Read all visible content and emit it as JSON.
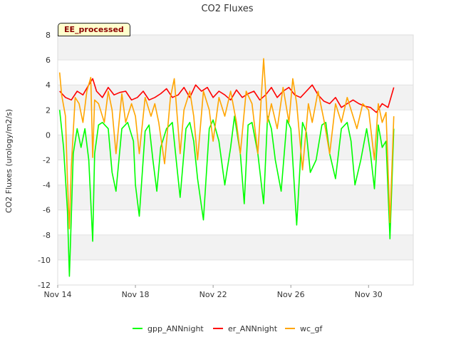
{
  "chart_data": {
    "type": "line",
    "title": "CO2 Fluxes",
    "xlabel": "",
    "ylabel": "CO2 Fluxes (urology/m2/s)",
    "badge": "EE_processed",
    "ylim": [
      -12,
      8
    ],
    "yticks": [
      8,
      6,
      4,
      2,
      0,
      -2,
      -4,
      -6,
      -8,
      -10,
      -12
    ],
    "xlim_days": [
      14,
      32.3
    ],
    "xticks": [
      {
        "label": "Nov 14",
        "day": 14
      },
      {
        "label": "Nov 18",
        "day": 18
      },
      {
        "label": "Nov 22",
        "day": 22
      },
      {
        "label": "Nov 26",
        "day": 26
      },
      {
        "label": "Nov 30",
        "day": 30
      }
    ],
    "grid": true,
    "legend_position": "bottom",
    "series": [
      {
        "name": "gpp_ANNnight",
        "color": "#00ff00",
        "x": [
          14.1,
          14.3,
          14.5,
          14.6,
          14.7,
          14.8,
          15.0,
          15.2,
          15.4,
          15.6,
          15.8,
          15.9,
          16.1,
          16.3,
          16.6,
          16.8,
          17.0,
          17.3,
          17.6,
          17.9,
          18.0,
          18.2,
          18.5,
          18.7,
          18.9,
          19.1,
          19.3,
          19.6,
          19.9,
          20.1,
          20.3,
          20.6,
          20.8,
          21.0,
          21.2,
          21.5,
          21.8,
          22.0,
          22.3,
          22.6,
          22.9,
          23.1,
          23.4,
          23.6,
          23.8,
          24.0,
          24.3,
          24.6,
          24.8,
          25.0,
          25.2,
          25.5,
          25.8,
          26.0,
          26.3,
          26.6,
          26.8,
          27.0,
          27.3,
          27.6,
          27.8,
          28.0,
          28.3,
          28.6,
          28.9,
          29.1,
          29.3,
          29.6,
          29.9,
          30.1,
          30.3,
          30.5,
          30.7,
          30.9,
          31.1,
          31.3
        ],
        "y": [
          2.0,
          -1.0,
          -6.0,
          -11.3,
          -6.5,
          -1.5,
          0.5,
          -1.0,
          0.5,
          -2.0,
          -8.5,
          -1.5,
          0.8,
          1.0,
          0.5,
          -3.0,
          -4.5,
          0.5,
          1.0,
          -0.5,
          -4.0,
          -6.5,
          0.3,
          0.8,
          -2.0,
          -4.5,
          -1.0,
          0.5,
          1.0,
          -2.0,
          -5.0,
          0.5,
          1.0,
          -0.5,
          -3.5,
          -6.8,
          0.5,
          1.2,
          -0.5,
          -4.0,
          -1.0,
          1.5,
          -1.5,
          -5.5,
          0.8,
          1.0,
          -1.5,
          -5.5,
          1.5,
          0.5,
          -2.0,
          -4.5,
          1.2,
          0.5,
          -7.2,
          1.0,
          0.2,
          -3.0,
          -2.0,
          0.8,
          1.0,
          -1.5,
          -3.5,
          0.5,
          1.0,
          -0.5,
          -4.0,
          -2.0,
          0.5,
          -1.5,
          -4.3,
          0.8,
          -1.0,
          -0.5,
          -8.3,
          0.5
        ]
      },
      {
        "name": "er_ANNnight",
        "color": "#ff0000",
        "x": [
          14.1,
          14.4,
          14.7,
          15.0,
          15.3,
          15.6,
          15.8,
          16.0,
          16.3,
          16.6,
          16.9,
          17.2,
          17.5,
          17.8,
          18.1,
          18.4,
          18.7,
          19.0,
          19.3,
          19.6,
          19.9,
          20.2,
          20.5,
          20.8,
          21.1,
          21.4,
          21.7,
          22.0,
          22.3,
          22.6,
          22.9,
          23.2,
          23.5,
          23.8,
          24.1,
          24.4,
          24.7,
          25.0,
          25.3,
          25.6,
          25.9,
          26.2,
          26.5,
          26.8,
          27.1,
          27.4,
          27.7,
          28.0,
          28.3,
          28.6,
          28.9,
          29.2,
          29.5,
          29.8,
          30.1,
          30.4,
          30.7,
          31.0,
          31.3
        ],
        "y": [
          3.5,
          3.0,
          2.8,
          3.5,
          3.2,
          4.0,
          4.5,
          3.5,
          3.0,
          3.8,
          3.2,
          3.4,
          3.5,
          2.8,
          3.0,
          3.5,
          2.8,
          3.0,
          3.3,
          3.7,
          3.0,
          3.2,
          3.8,
          3.0,
          4.0,
          3.5,
          3.8,
          3.0,
          3.5,
          3.2,
          2.8,
          3.6,
          3.0,
          3.3,
          3.5,
          2.8,
          3.2,
          3.8,
          3.0,
          3.5,
          3.8,
          3.2,
          3.0,
          3.5,
          4.0,
          3.2,
          2.7,
          2.5,
          3.0,
          2.2,
          2.5,
          2.8,
          2.5,
          2.3,
          2.2,
          1.8,
          2.5,
          2.2,
          3.8
        ]
      },
      {
        "name": "wc_gf",
        "color": "#ffa500",
        "x": [
          14.1,
          14.2,
          14.4,
          14.5,
          14.6,
          14.7,
          14.9,
          15.1,
          15.3,
          15.5,
          15.7,
          15.8,
          15.9,
          16.1,
          16.4,
          16.6,
          16.8,
          17.0,
          17.3,
          17.5,
          17.8,
          18.0,
          18.2,
          18.5,
          18.8,
          19.0,
          19.2,
          19.5,
          19.8,
          20.0,
          20.3,
          20.5,
          20.8,
          21.0,
          21.2,
          21.5,
          21.8,
          22.0,
          22.3,
          22.6,
          22.9,
          23.2,
          23.4,
          23.7,
          24.0,
          24.3,
          24.6,
          24.8,
          25.0,
          25.3,
          25.6,
          25.9,
          26.1,
          26.3,
          26.6,
          26.9,
          27.1,
          27.4,
          27.7,
          28.0,
          28.3,
          28.6,
          28.9,
          29.2,
          29.4,
          29.7,
          30.0,
          30.3,
          30.5,
          30.7,
          30.9,
          31.1,
          31.3
        ],
        "y": [
          5.0,
          3.2,
          1.5,
          -3.5,
          -7.5,
          -2.5,
          3.0,
          2.5,
          1.0,
          3.5,
          4.6,
          -1.8,
          2.8,
          2.5,
          1.0,
          3.5,
          2.0,
          -1.5,
          3.3,
          1.0,
          2.5,
          1.5,
          -1.5,
          3.0,
          1.5,
          2.5,
          1.0,
          -2.3,
          3.0,
          4.5,
          -1.5,
          2.0,
          3.5,
          1.5,
          -2.0,
          3.5,
          2.0,
          -0.5,
          3.0,
          1.5,
          3.5,
          1.0,
          -1.5,
          3.5,
          2.5,
          -1.5,
          6.1,
          1.0,
          2.5,
          0.5,
          3.8,
          1.0,
          4.5,
          2.5,
          -2.8,
          2.5,
          1.0,
          3.5,
          1.2,
          -1.5,
          2.5,
          1.0,
          3.0,
          1.5,
          0.5,
          2.5,
          2.0,
          -2.0,
          2.5,
          1.0,
          1.8,
          -7.0,
          1.5
        ]
      }
    ]
  }
}
